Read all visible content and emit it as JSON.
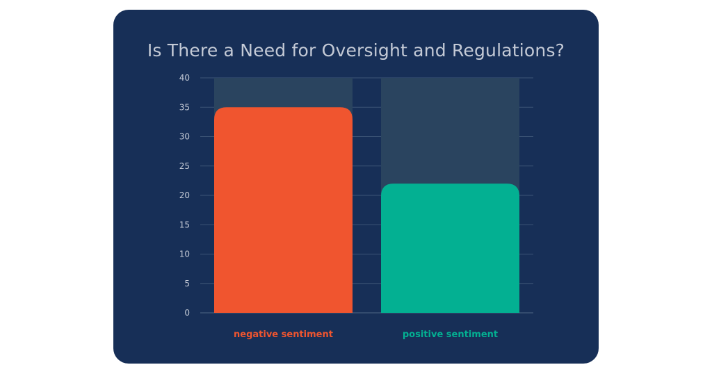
{
  "chart_data": {
    "type": "bar",
    "title": "Is There a Need for Oversight and Regulations?",
    "categories": [
      "negative sentiment",
      "positive sentiment"
    ],
    "values": [
      35,
      22
    ],
    "ylim": [
      0,
      40
    ],
    "yticks": [
      0,
      5,
      10,
      15,
      20,
      25,
      30,
      35,
      40
    ],
    "grid": true,
    "colors": {
      "background": "#172f57",
      "bar_track": "#2a445f",
      "bars": [
        "#f0552f",
        "#03b092"
      ],
      "grid": "#3d5577",
      "text": "#c4cad6"
    }
  }
}
